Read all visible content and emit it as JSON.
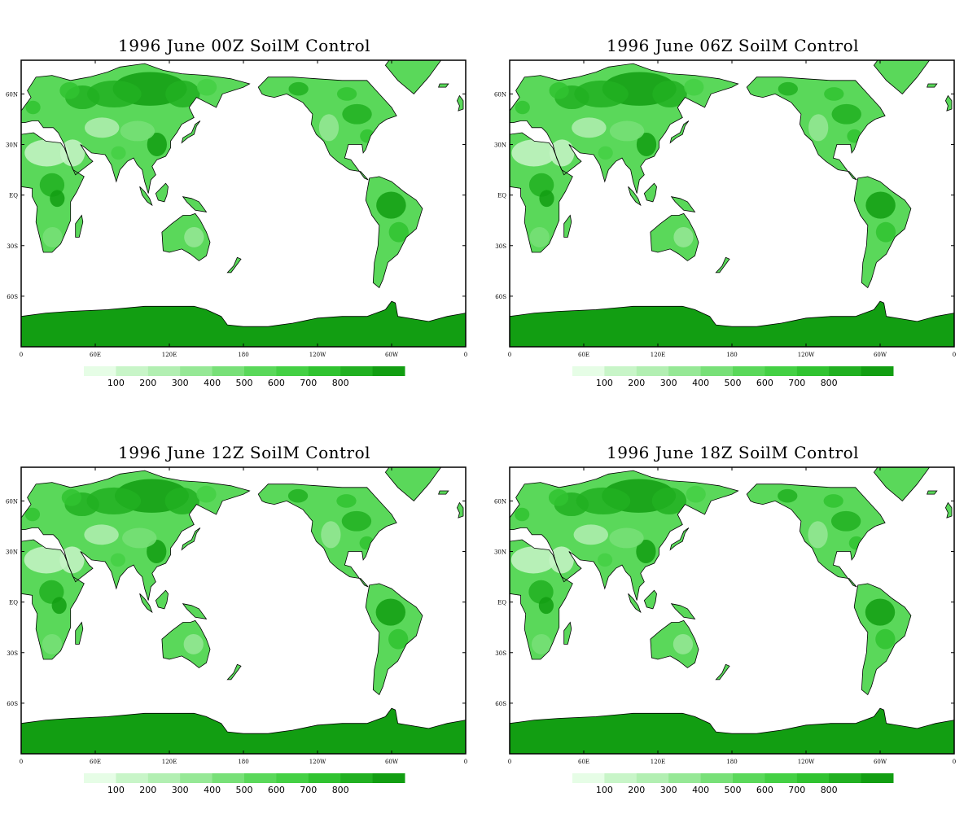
{
  "colors": {
    "ocean": "#ffffff",
    "coast": "#000000",
    "scale": [
      "#e6fde6",
      "#c8f5c8",
      "#b2efb2",
      "#96e896",
      "#78e078",
      "#5ad85a",
      "#44d044",
      "#30c330",
      "#21b021",
      "#129e12"
    ]
  },
  "axes": {
    "lat_ticks": [
      "60N",
      "30N",
      "EQ",
      "30S",
      "60S"
    ],
    "lon_ticks": [
      "0",
      "60E",
      "120E",
      "180",
      "120W",
      "60W",
      "0"
    ]
  },
  "colorbar": {
    "labels": [
      "100",
      "200",
      "300",
      "400",
      "500",
      "600",
      "700",
      "800"
    ]
  },
  "panels": [
    {
      "title": "1996 June  00Z SoilM Control"
    },
    {
      "title": "1996  June 06Z SoilM Control"
    },
    {
      "title": "1996  June 12Z SoilM Control"
    },
    {
      "title": "1996  June 18Z SoilM Control"
    }
  ]
}
